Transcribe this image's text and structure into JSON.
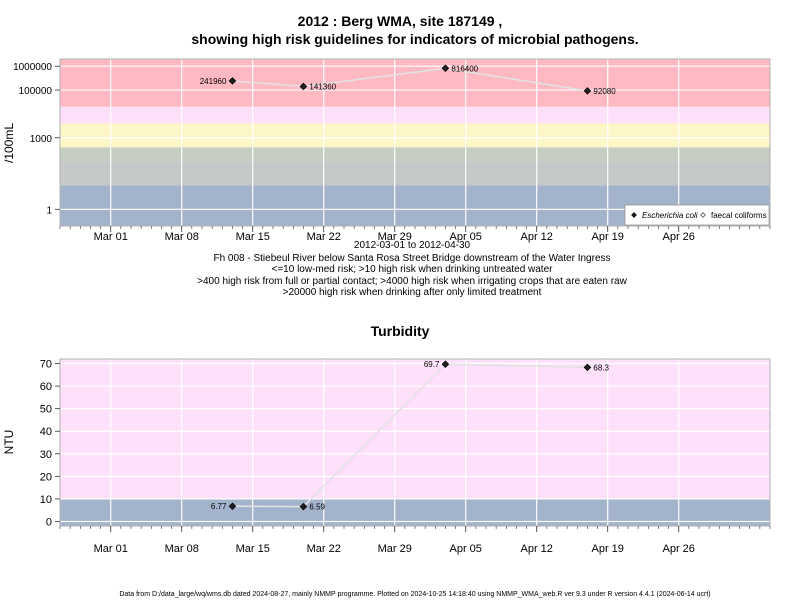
{
  "chart_data": [
    {
      "type": "line",
      "title": "2012 : Berg WMA, site 187149 ,",
      "subtitle": "showing high risk guidelines for indicators of microbial pathogens.",
      "ylabel": "/100mL",
      "yscale": "log",
      "ylim": [
        0.2,
        2000000
      ],
      "yticks": [
        1,
        1000,
        100000,
        1000000
      ],
      "ytick_labels": [
        "1",
        "1000",
        "100000",
        "1000000"
      ],
      "xlim": [
        "2012-02-25",
        "2012-05-05"
      ],
      "xticks": [
        "2012-03-01",
        "2012-03-08",
        "2012-03-15",
        "2012-03-22",
        "2012-03-29",
        "2012-04-05",
        "2012-04-12",
        "2012-04-19",
        "2012-04-26"
      ],
      "xtick_labels": [
        "Mar 01",
        "Mar 08",
        "Mar 15",
        "Mar 22",
        "Mar 29",
        "Apr 05",
        "Apr 12",
        "Apr 19",
        "Apr 26"
      ],
      "bands": [
        {
          "from": 0.2,
          "to": 10,
          "color": "#a3b3cb"
        },
        {
          "from": 10,
          "to": 100,
          "color": "#c5c9c7"
        },
        {
          "from": 100,
          "to": 400,
          "color": "#c4cdc0"
        },
        {
          "from": 400,
          "to": 4000,
          "color": "#fdf6c6"
        },
        {
          "from": 4000,
          "to": 20000,
          "color": "#fee0fb"
        },
        {
          "from": 20000,
          "to": 2000000,
          "color": "#ffb9c3"
        }
      ],
      "series": [
        {
          "name": "Escherichia coli",
          "marker": "filled-diamond",
          "color": "#222222",
          "line_color": "#e2e2e2",
          "points": [
            {
              "x": "2012-03-13",
              "y": 241960,
              "label": "241960",
              "label_side": "left"
            },
            {
              "x": "2012-03-20",
              "y": 141360,
              "label": "141360",
              "label_side": "right"
            },
            {
              "x": "2012-04-03",
              "y": 816400,
              "label": "816400",
              "label_side": "right"
            },
            {
              "x": "2012-04-17",
              "y": 92080,
              "label": "92080",
              "label_side": "right"
            }
          ]
        },
        {
          "name": "faecal coliforms",
          "marker": "open-diamond",
          "color": "#555555",
          "points": []
        }
      ],
      "legend": {
        "position": "bottom-right",
        "items": [
          "Escherichia coli",
          "faecal coliforms"
        ]
      },
      "notes": [
        "2012-03-01 to 2012-04-30",
        "Fh 008 - Stiebeul River below Santa Rosa Street Bridge downstream of the Water Ingress",
        "<=10 low-med risk; >10 high risk when drinking untreated water",
        ">400 high risk from full or partial contact; >4000 high risk when irrigating crops that are eaten raw",
        ">20000 high risk when drinking after only limited treatment"
      ]
    },
    {
      "type": "line",
      "title": "Turbidity",
      "ylabel": "NTU",
      "ylim": [
        -2,
        72
      ],
      "yticks": [
        0,
        10,
        20,
        30,
        40,
        50,
        60,
        70
      ],
      "ytick_labels": [
        "0",
        "10",
        "20",
        "30",
        "40",
        "50",
        "60",
        "70"
      ],
      "xlim": [
        "2012-02-25",
        "2012-05-05"
      ],
      "xticks": [
        "2012-03-01",
        "2012-03-08",
        "2012-03-15",
        "2012-03-22",
        "2012-03-29",
        "2012-04-05",
        "2012-04-12",
        "2012-04-19",
        "2012-04-26"
      ],
      "xtick_labels": [
        "Mar 01",
        "Mar 08",
        "Mar 15",
        "Mar 22",
        "Mar 29",
        "Apr 05",
        "Apr 12",
        "Apr 19",
        "Apr 26"
      ],
      "bands": [
        {
          "from": -2,
          "to": 10,
          "color": "#a3b3cb"
        },
        {
          "from": 10,
          "to": 72,
          "color": "#fee0fb"
        }
      ],
      "series": [
        {
          "marker": "filled-diamond",
          "color": "#222222",
          "line_color": "#e2e2e2",
          "points": [
            {
              "x": "2012-03-13",
              "y": 6.77,
              "label": "6.77",
              "label_side": "left"
            },
            {
              "x": "2012-03-20",
              "y": 6.59,
              "label": "6.59",
              "label_side": "right"
            },
            {
              "x": "2012-04-03",
              "y": 69.7,
              "label": "69.7",
              "label_side": "left"
            },
            {
              "x": "2012-04-17",
              "y": 68.3,
              "label": "68.3",
              "label_side": "right"
            }
          ]
        }
      ]
    }
  ],
  "footer": "Data from D:/data_large/wq/wms.db dated 2024-08-27, mainly NMMP programme. Plotted on 2024-10-25 14:18:40 using NMMP_WMA_web.R ver 9.3 under R version 4.4.1 (2024-06-14 ucrt)"
}
